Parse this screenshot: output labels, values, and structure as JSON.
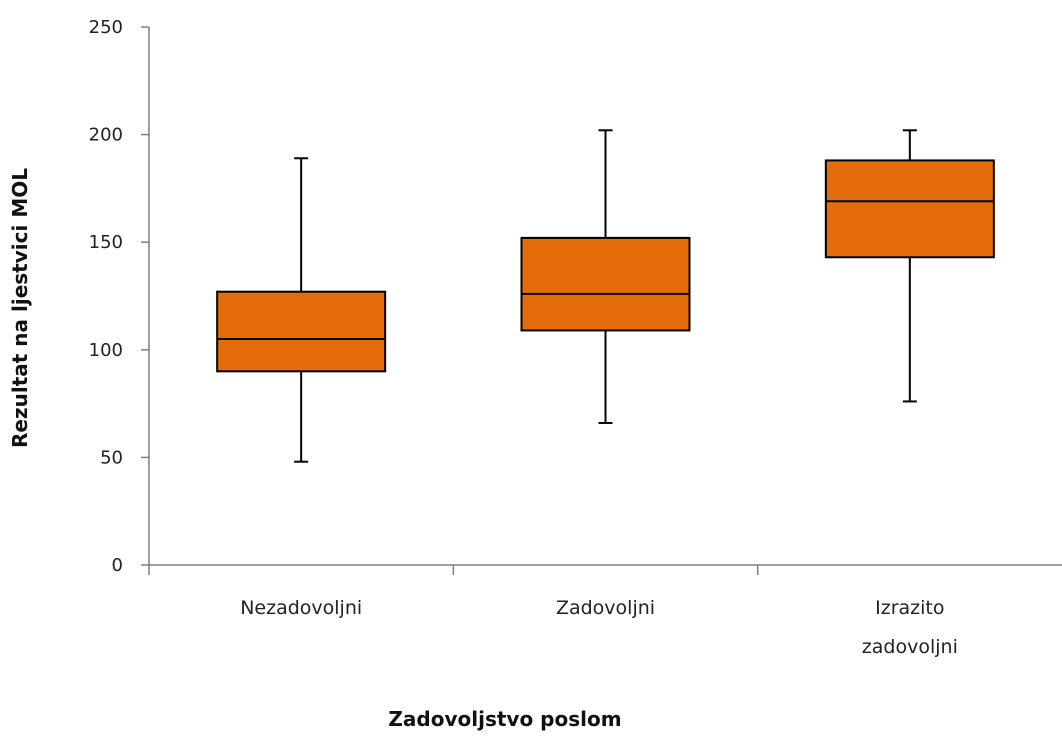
{
  "chart_data": {
    "type": "boxplot",
    "title": "",
    "xlabel": "Zadovoljstvo poslom",
    "ylabel": "Rezultat na ljestvici MOL",
    "ylim": [
      0,
      250
    ],
    "yticks": [
      0,
      50,
      100,
      150,
      200,
      250
    ],
    "grid": false,
    "legend": "none",
    "box_color": "#e46c0a",
    "categories": [
      {
        "label_lines": [
          "Nezadovoljni"
        ],
        "min": 48,
        "q1": 90,
        "median": 105,
        "q3": 127,
        "max": 189
      },
      {
        "label_lines": [
          "Zadovoljni"
        ],
        "min": 66,
        "q1": 109,
        "median": 126,
        "q3": 152,
        "max": 202
      },
      {
        "label_lines": [
          "Izrazito",
          "zadovoljni"
        ],
        "min": 76,
        "q1": 143,
        "median": 169,
        "q3": 188,
        "max": 202
      }
    ]
  }
}
